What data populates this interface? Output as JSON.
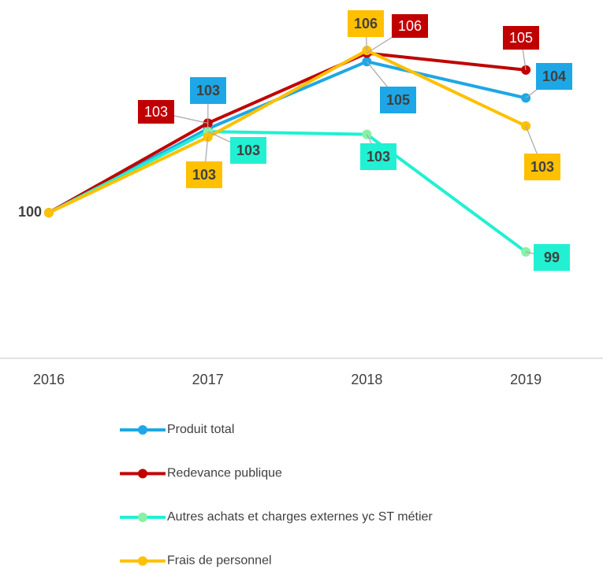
{
  "chart_data": {
    "type": "line",
    "categories": [
      "2016",
      "2017",
      "2018",
      "2019"
    ],
    "ylim": [
      94.8,
      107.6
    ],
    "series": [
      {
        "name": "Produit total",
        "color": "#1ea7e6",
        "marker_color": "#1ea7e6",
        "label_color": "#1ea7e6",
        "values": [
          100,
          103.0,
          105.4,
          104.1
        ],
        "value_labels": [
          null,
          "103",
          "105",
          "104"
        ]
      },
      {
        "name": "Redevance publique",
        "color": "#c00000",
        "marker_color": "#c00000",
        "label_color": "#c00000",
        "values": [
          100,
          103.2,
          105.7,
          105.1
        ],
        "value_labels": [
          null,
          "103",
          "106",
          "105"
        ]
      },
      {
        "name": "Autres achats et charges externes yc ST métier",
        "color": "#22f0d2",
        "marker_color": "#86f2a6",
        "label_color": "#22f0d2",
        "values": [
          100,
          102.9,
          102.8,
          98.6
        ],
        "value_labels": [
          null,
          "103",
          "103",
          "99"
        ]
      },
      {
        "name": "Frais de personnel",
        "color": "#ffc000",
        "marker_color": "#ffc000",
        "label_color": "#ffc000",
        "values": [
          100,
          102.7,
          105.8,
          103.1
        ],
        "value_labels": [
          "100",
          "103",
          "106",
          "103"
        ]
      }
    ]
  }
}
